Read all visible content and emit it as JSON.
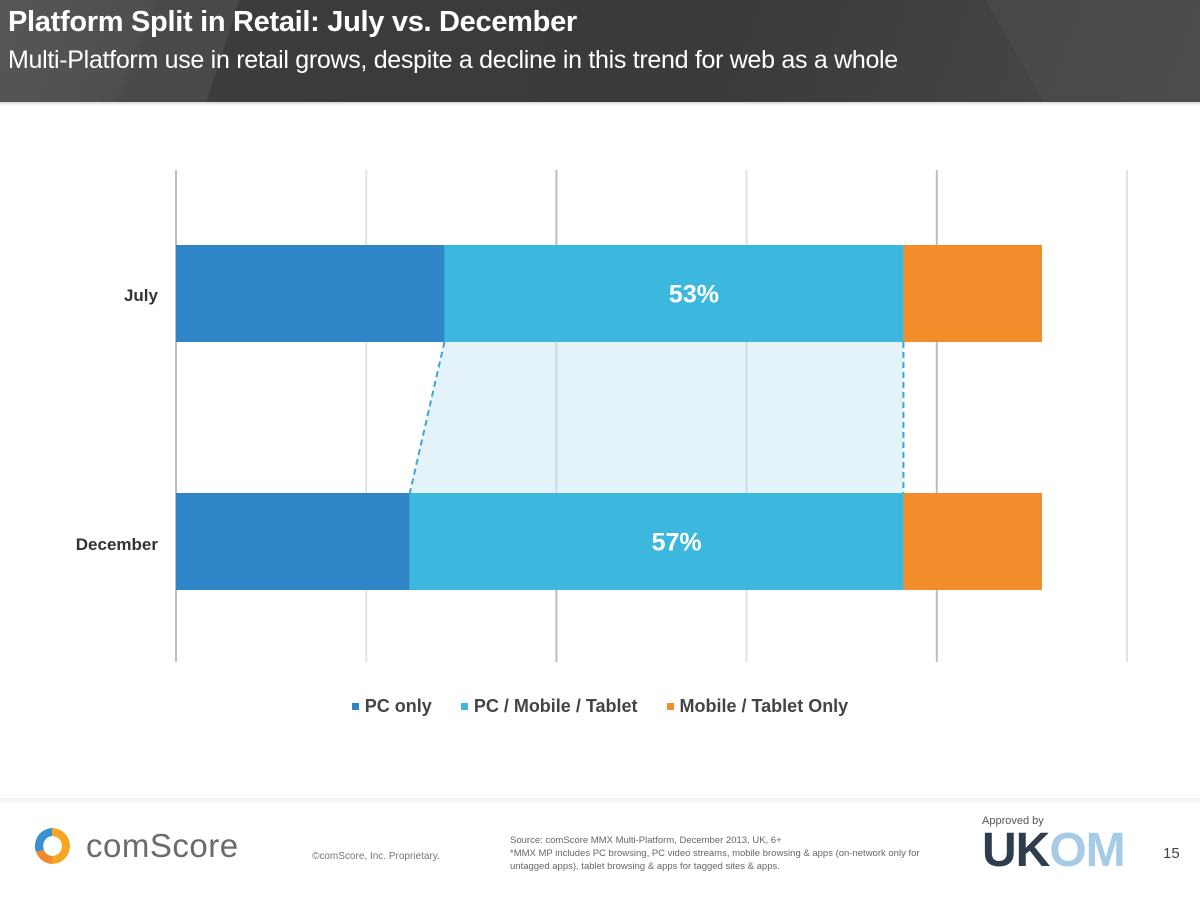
{
  "header": {
    "title": "Platform Split in Retail: July vs. December",
    "subtitle": "Multi-Platform use in retail grows, despite a decline in this trend for web as a whole"
  },
  "colors": {
    "pc_only": "#2e86c8",
    "multi": "#3cb8de",
    "mobile_only": "#f28d2c",
    "bridge_fill": "#dff1f9",
    "bridge_stroke": "#3aa7d6",
    "gridline": "#c8c8c8"
  },
  "chart_data": {
    "type": "bar",
    "orientation": "horizontal",
    "stacked": "percent",
    "title": "Platform Split in Retail: July vs. December",
    "categories": [
      "July",
      "December"
    ],
    "series": [
      {
        "name": "PC only",
        "values": [
          31,
          27
        ]
      },
      {
        "name": "PC / Mobile / Tablet",
        "values": [
          53,
          57
        ]
      },
      {
        "name": "Mobile / Tablet Only",
        "values": [
          16,
          16
        ]
      }
    ],
    "data_labels": [
      {
        "category": "July",
        "series": "PC / Mobile / Tablet",
        "text": "53%"
      },
      {
        "category": "December",
        "series": "PC / Mobile / Tablet",
        "text": "57%"
      }
    ],
    "xlabel": "",
    "ylabel": "",
    "xlim": [
      0,
      100
    ],
    "grid": true,
    "gridline_count": 6,
    "legend_position": "bottom",
    "annotation": "Dashed connector highlighting growth of PC / Mobile / Tablet segment from July to December"
  },
  "legend": [
    {
      "label": "PC only",
      "color_key": "pc_only"
    },
    {
      "label": "PC / Mobile / Tablet",
      "color_key": "multi"
    },
    {
      "label": "Mobile / Tablet Only",
      "color_key": "mobile_only"
    }
  ],
  "footer": {
    "logo_text": "comScore",
    "copyright": "©comScore, Inc.    Proprietary.",
    "source_line1": "Source: comScore MMX Multi-Platform, December 2013, UK, 6+",
    "source_line2": "*MMX MP includes PC browsing, PC video streams, mobile browsing & apps (on-network only for untagged apps), tablet browsing & apps for tagged sites & apps.",
    "approved_by": "Approved by",
    "ukom_uk": "UK",
    "ukom_om": "OM",
    "page_number": "15"
  }
}
